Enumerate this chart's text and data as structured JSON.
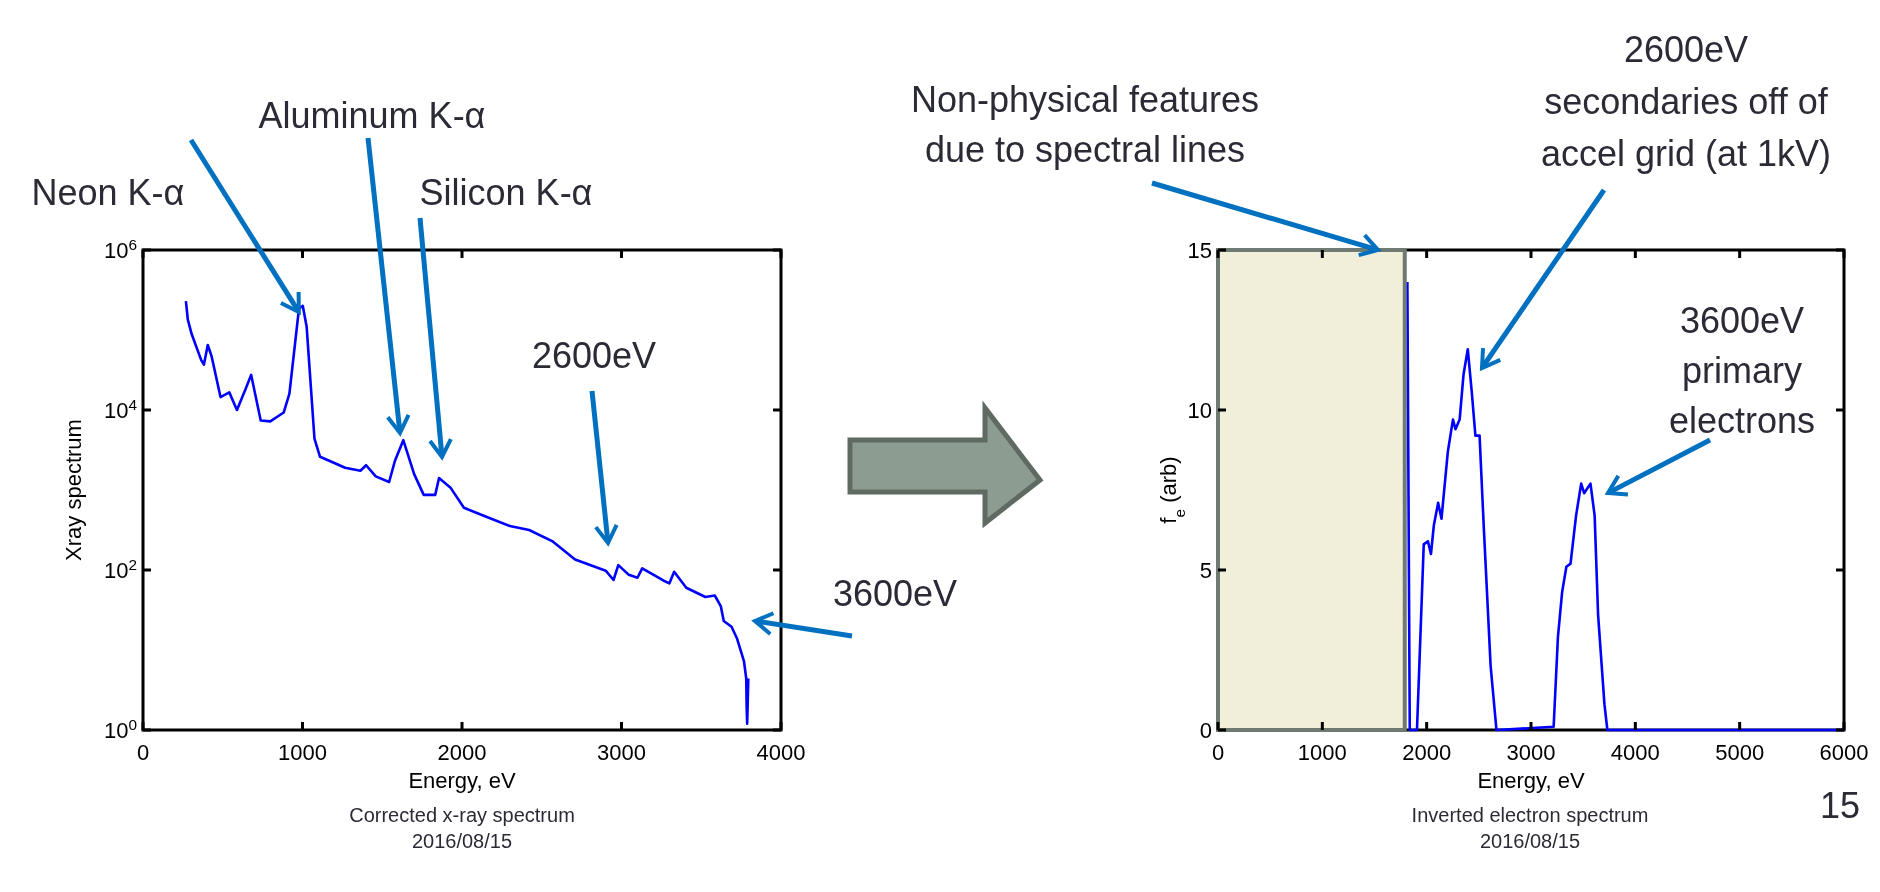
{
  "chart_data": [
    {
      "type": "line",
      "xlabel": "Energy, eV",
      "ylabel": "Xray spectrum",
      "log": "y",
      "grid": false,
      "marker": "none",
      "line_style": "solid",
      "xlim": [
        0,
        4000
      ],
      "xticks": [
        0,
        1000,
        2000,
        3000,
        4000
      ],
      "ylim": [
        1,
        1000000
      ],
      "yticks": [
        {
          "value": 1,
          "label": "10$^{0}$"
        },
        {
          "value": 100,
          "label": "10$^{2}$"
        },
        {
          "value": 10000,
          "label": "10$^{4}$"
        },
        {
          "value": 1000000,
          "label": "10$^{6}$"
        }
      ],
      "series": [
        {
          "color": "#0000ff",
          "x": [
            269,
            281,
            305,
            365,
            382,
            406,
            430,
            486,
            541,
            589,
            642,
            678,
            738,
            798,
            882,
            918,
            978,
            1002,
            1026,
            1075,
            1110,
            1171,
            1267,
            1363,
            1399,
            1459,
            1543,
            1579,
            1632,
            1700,
            1760,
            1832,
            1856,
            1928,
            2012,
            2156,
            2300,
            2421,
            2565,
            2709,
            2901,
            2950,
            2980,
            3046,
            3100,
            3130,
            3262,
            3300,
            3330,
            3406,
            3526,
            3585,
            3623,
            3641,
            3690,
            3725,
            3768,
            3782,
            3785,
            3788,
            3795
          ],
          "values": [
            230000,
            135000,
            89000,
            42000,
            37000,
            65000,
            47000,
            14500,
            16600,
            10000,
            18000,
            27500,
            7400,
            7200,
            9300,
            16000,
            186000,
            200000,
            110000,
            4400,
            2600,
            2300,
            1900,
            1740,
            2040,
            1480,
            1260,
            2300,
            4200,
            1580,
            870,
            870,
            1410,
            1070,
            600,
            460,
            355,
            316,
            230,
            135,
            98,
            75,
            115,
            87,
            80,
            105,
            74,
            68,
            95,
            60,
            46,
            48,
            35,
            23,
            19.5,
            13.8,
            7.2,
            4.4,
            1.8,
            1.2,
            4.4
          ]
        }
      ],
      "annotations": [
        {
          "text": "Neon K-α",
          "x": 1002,
          "y": 200000
        },
        "Aluminum K-α",
        "Silicon K-α",
        "2600eV",
        "3600eV",
        "Corrected x-ray spectrum",
        "2016/08/15"
      ]
    },
    {
      "type": "line",
      "xlabel": "Energy, eV",
      "ylabel": "f$_{e}$ (arb)",
      "grid": false,
      "marker": "none",
      "line_style": "solid",
      "xlim": [
        0,
        6000
      ],
      "xticks": [
        0,
        1000,
        2000,
        3000,
        4000,
        5000,
        6000
      ],
      "ylim": [
        0,
        15
      ],
      "yticks": [
        0,
        5,
        10,
        15
      ],
      "bands": [
        {
          "axis": "x",
          "from": 0,
          "to": 1790,
          "color": "#f1efda"
        }
      ],
      "series": [
        {
          "color": "#0000ff",
          "x": [
            1815,
            1838,
            1907,
            1972,
            2012,
            2041,
            2069,
            2110,
            2142,
            2203,
            2252,
            2276,
            2316,
            2353,
            2394,
            2434,
            2467,
            2507,
            2548,
            2613,
            2669,
            3217,
            3258,
            3298,
            3339,
            3379,
            3432,
            3481,
            3509,
            3570,
            3610,
            3643,
            3704,
            3732,
            6000
          ],
          "values": [
            14,
            0,
            0,
            5.8,
            5.9,
            5.5,
            6.4,
            7.1,
            6.6,
            8.7,
            9.7,
            9.4,
            9.7,
            11.1,
            11.9,
            10.5,
            9.2,
            9.2,
            6.3,
            2,
            0,
            0.1,
            2.9,
            4.3,
            5.1,
            5.2,
            6.7,
            7.7,
            7.4,
            7.7,
            6.7,
            3.6,
            0.8,
            0,
            0
          ]
        }
      ],
      "annotations": [
        "Non-physical features due to spectral lines",
        "2600eV secondaries off of accel grid (at 1kV)",
        "3600eV primary electrons",
        "Inverted electron spectrum",
        "2016/08/15",
        "15"
      ]
    }
  ]
}
